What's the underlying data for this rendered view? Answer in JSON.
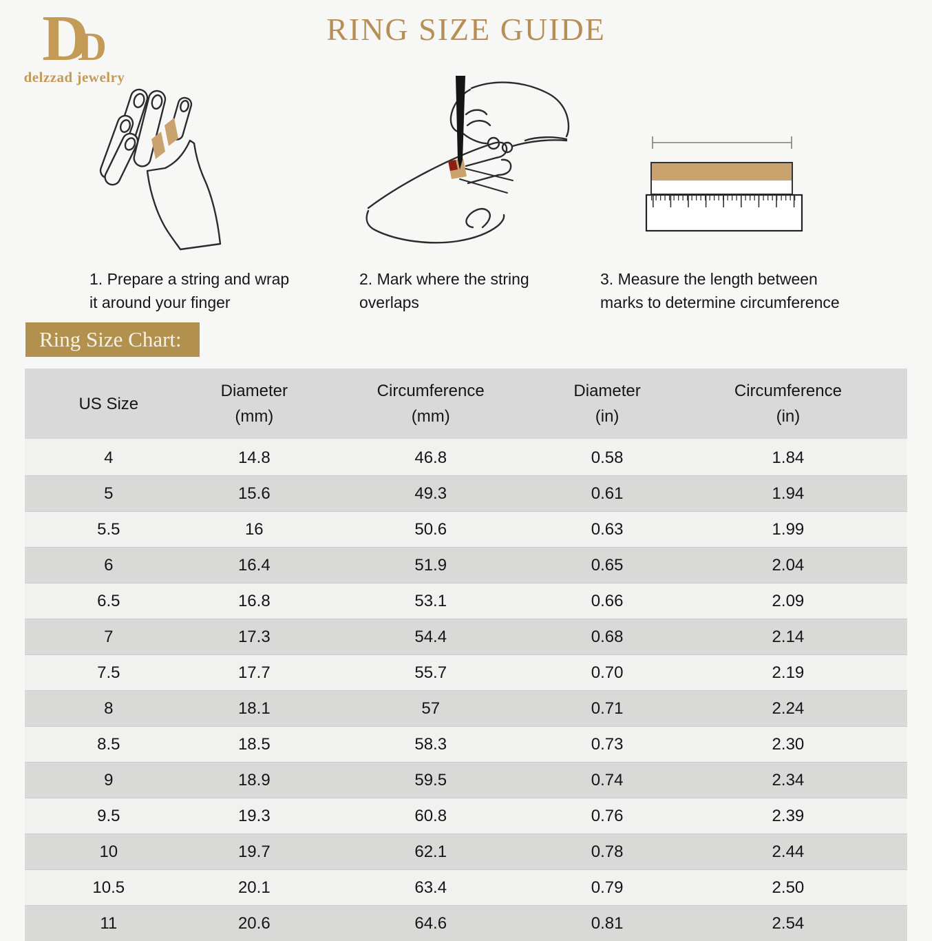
{
  "brand": {
    "monogram_d1": "D",
    "monogram_d2": "D",
    "name": "delzzad jewelry"
  },
  "title": "RING SIZE GUIDE",
  "steps": [
    {
      "line1": "1. Prepare a string and wrap",
      "line2": "it around your finger"
    },
    {
      "line1": "2. Mark where the string",
      "line2": "overlaps"
    },
    {
      "line1": "3. Measure the length between",
      "line2": "marks to determine circumference"
    }
  ],
  "chart_label": "Ring Size Chart:",
  "table": {
    "headers": [
      {
        "line1": "US Size",
        "line2": ""
      },
      {
        "line1": "Diameter",
        "line2": "(mm)"
      },
      {
        "line1": "Circumference",
        "line2": "(mm)"
      },
      {
        "line1": "Diameter",
        "line2": "(in)"
      },
      {
        "line1": "Circumference",
        "line2": "(in)"
      }
    ],
    "rows": [
      [
        "4",
        "14.8",
        "46.8",
        "0.58",
        "1.84"
      ],
      [
        "5",
        "15.6",
        "49.3",
        "0.61",
        "1.94"
      ],
      [
        "5.5",
        "16",
        "50.6",
        "0.63",
        "1.99"
      ],
      [
        "6",
        "16.4",
        "51.9",
        "0.65",
        "2.04"
      ],
      [
        "6.5",
        "16.8",
        "53.1",
        "0.66",
        "2.09"
      ],
      [
        "7",
        "17.3",
        "54.4",
        "0.68",
        "2.14"
      ],
      [
        "7.5",
        "17.7",
        "55.7",
        "0.70",
        "2.19"
      ],
      [
        "8",
        "18.1",
        "57",
        "0.71",
        "2.24"
      ],
      [
        "8.5",
        "18.5",
        "58.3",
        "0.73",
        "2.30"
      ],
      [
        "9",
        "18.9",
        "59.5",
        "0.74",
        "2.34"
      ],
      [
        "9.5",
        "19.3",
        "60.8",
        "0.76",
        "2.39"
      ],
      [
        "10",
        "19.7",
        "62.1",
        "0.78",
        "2.44"
      ],
      [
        "10.5",
        "20.1",
        "63.4",
        "0.79",
        "2.50"
      ],
      [
        "11",
        "20.6",
        "64.6",
        "0.81",
        "2.54"
      ]
    ]
  },
  "colors": {
    "title_gold": "#b78e55",
    "logo_gold": "#c39a56",
    "label_bg": "#b2914e",
    "label_text": "#f6f1e6",
    "string_tan": "#c9a26d",
    "mark_red": "#8e1f12",
    "line_art": "#2b2b2b",
    "header_bg": "#d9d9d9",
    "row_light": "#f1f1ef",
    "row_dark": "#d9d9d8",
    "page_bg": "#f7f7f5"
  }
}
